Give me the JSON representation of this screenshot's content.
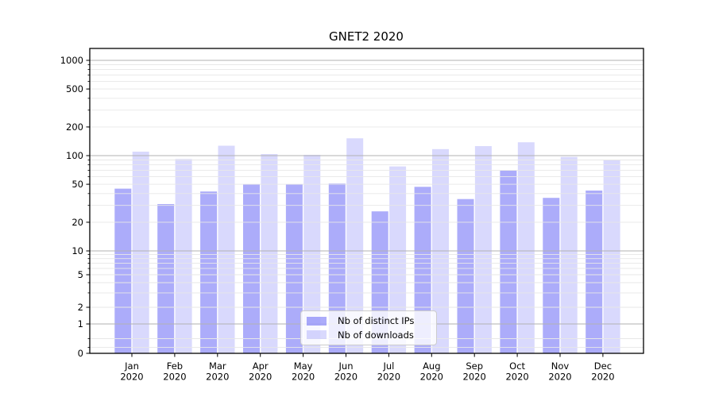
{
  "chart_data": {
    "type": "bar",
    "title": "GNET2 2020",
    "categories": [
      "Jan",
      "Feb",
      "Mar",
      "Apr",
      "May",
      "Jun",
      "Jul",
      "Aug",
      "Sep",
      "Oct",
      "Nov",
      "Dec"
    ],
    "category_year": "2020",
    "series": [
      {
        "name": "Nb of distinct IPs",
        "color": "rgba(16,16,240,0.35)",
        "values": [
          45,
          31,
          42,
          50,
          50,
          51,
          26,
          47,
          35,
          70,
          36,
          43
        ]
      },
      {
        "name": "Nb of downloads",
        "color": "rgba(16,16,240,0.16)",
        "values": [
          110,
          92,
          127,
          104,
          102,
          152,
          77,
          117,
          126,
          138,
          97,
          90
        ]
      }
    ],
    "xlabel": "",
    "ylabel": "",
    "yscale": "symlog",
    "ylim": [
      0,
      1333
    ],
    "y_tick_labels": [
      0,
      1,
      2,
      5,
      10,
      20,
      50,
      100,
      200,
      500,
      1000
    ],
    "grid": true,
    "gridlines_major": [
      1,
      10,
      100,
      1000
    ],
    "gridlines_minor": [
      0.2,
      0.5,
      2,
      3,
      4,
      5,
      6,
      7,
      8,
      9,
      20,
      30,
      40,
      50,
      60,
      70,
      80,
      90,
      200,
      300,
      400,
      500,
      600,
      700,
      800,
      900
    ],
    "legend_position": "lower center"
  },
  "colors": {
    "background": "#ffffff",
    "axis_frame": "#000000",
    "grid_major": "#b2b2b2",
    "grid_minor": "#e7e7e7",
    "tick_text": "#000000",
    "bar_distinct_ips": "rgba(16,16,240,0.35)",
    "bar_downloads": "rgba(16,16,240,0.16)"
  }
}
